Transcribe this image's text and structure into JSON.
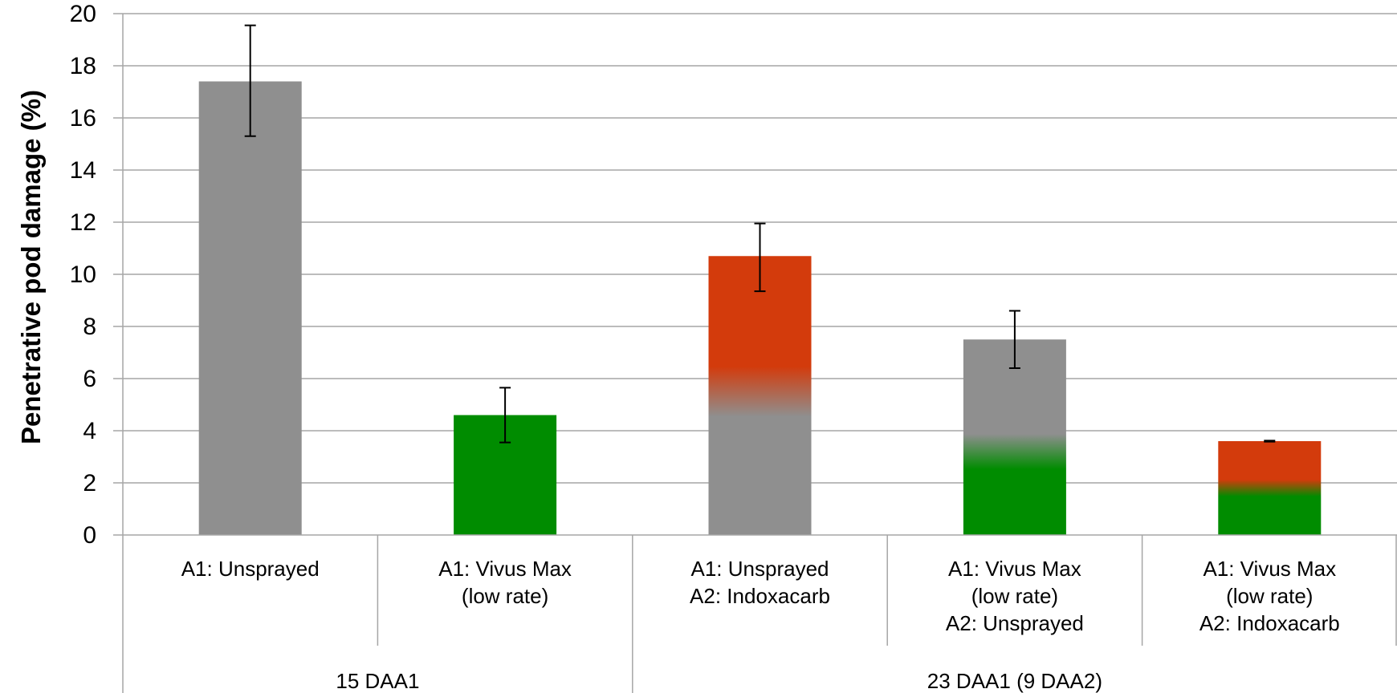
{
  "chart_data": {
    "type": "bar",
    "ylabel": "Penetrative pod damage (%)",
    "xlabel": "",
    "title": "",
    "ylim": [
      0,
      20
    ],
    "y_ticks": [
      "0",
      "2",
      "4",
      "6",
      "8",
      "10",
      "12",
      "14",
      "16",
      "18",
      "20"
    ],
    "grid": true,
    "categories": [
      {
        "lines": [
          "A1: Unsprayed"
        ],
        "group": "15 DAA1",
        "value": 17.4,
        "error_low": 15.3,
        "error_high": 19.55,
        "fill": {
          "top": "#8f8f8f",
          "bottom": "#8f8f8f",
          "blend_at": 0
        }
      },
      {
        "lines": [
          "A1: Vivus Max",
          "(low rate)"
        ],
        "group": "15 DAA1",
        "value": 4.6,
        "error_low": 3.55,
        "error_high": 5.65,
        "fill": {
          "top": "#008c00",
          "bottom": "#008c00",
          "blend_at": 0
        }
      },
      {
        "lines": [
          "A1: Unsprayed",
          "A2: Indoxacarb"
        ],
        "group": "23 DAA1 (9 DAA2)",
        "value": 10.7,
        "error_low": 9.35,
        "error_high": 11.95,
        "fill": {
          "top": "#d33b0c",
          "bottom": "#8f8f8f",
          "blend_at": 5.5
        }
      },
      {
        "lines": [
          "A1: Vivus Max",
          "(low rate)",
          "A2: Unsprayed"
        ],
        "group": "23 DAA1 (9 DAA2)",
        "value": 7.5,
        "error_low": 6.4,
        "error_high": 8.6,
        "fill": {
          "top": "#8f8f8f",
          "bottom": "#008c00",
          "blend_at": 3.2
        }
      },
      {
        "lines": [
          "A1: Vivus Max",
          "(low rate)",
          "A2: Indoxacarb"
        ],
        "group": "23 DAA1 (9 DAA2)",
        "value": 3.6,
        "error_low": 3.58,
        "error_high": 3.62,
        "fill": {
          "top": "#d33b0c",
          "bottom": "#008c00",
          "blend_at": 1.8
        }
      }
    ],
    "groups": [
      "15 DAA1",
      "23 DAA1 (9 DAA2)"
    ],
    "colors": {
      "gridline": "#a6a6a6",
      "axis": "#a6a6a6",
      "errorbar": "#000000"
    }
  }
}
